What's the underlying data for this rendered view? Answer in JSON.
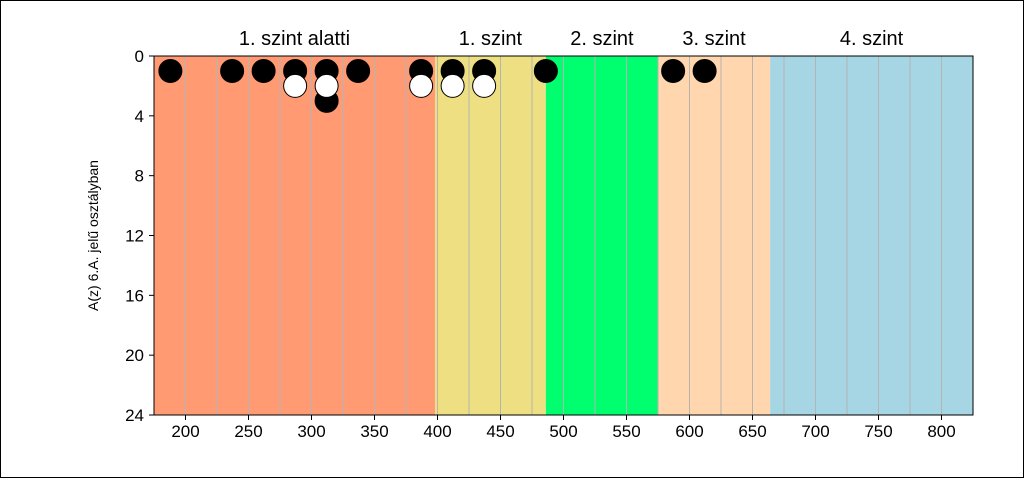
{
  "chart_data": {
    "type": "scatter",
    "ylabel": "A(z) 6.A. jelű osztályban",
    "xlim": [
      175,
      825
    ],
    "ylim": [
      0,
      24
    ],
    "y_inverted": true,
    "x_ticks": [
      200,
      250,
      300,
      350,
      400,
      450,
      500,
      550,
      600,
      650,
      700,
      750,
      800
    ],
    "y_ticks": [
      0,
      4,
      8,
      12,
      16,
      20,
      24
    ],
    "bands": [
      {
        "label": "1. szint alatti",
        "from": 175,
        "to": 398,
        "color": "#FF9A73"
      },
      {
        "label": "1. szint",
        "from": 398,
        "to": 486,
        "color": "#EEE082"
      },
      {
        "label": "2. szint",
        "from": 486,
        "to": 575,
        "color": "#00FF6E"
      },
      {
        "label": "3. szint",
        "from": 575,
        "to": 664,
        "color": "#FFD6AE"
      },
      {
        "label": "4. szint",
        "from": 664,
        "to": 825,
        "color": "#A6D5E3"
      }
    ],
    "series": [
      {
        "fill": "#000000",
        "points": [
          {
            "x": 188,
            "y": 1
          },
          {
            "x": 237,
            "y": 1
          },
          {
            "x": 262,
            "y": 1
          },
          {
            "x": 287,
            "y": 1
          },
          {
            "x": 312,
            "y": 1
          },
          {
            "x": 337,
            "y": 1
          },
          {
            "x": 387,
            "y": 1
          },
          {
            "x": 412,
            "y": 1
          },
          {
            "x": 437,
            "y": 1
          },
          {
            "x": 486,
            "y": 1
          },
          {
            "x": 587,
            "y": 1
          },
          {
            "x": 612,
            "y": 1
          },
          {
            "x": 312,
            "y": 3
          }
        ]
      },
      {
        "fill": "#ffffff",
        "points": [
          {
            "x": 287,
            "y": 2
          },
          {
            "x": 312,
            "y": 2
          },
          {
            "x": 387,
            "y": 2
          },
          {
            "x": 412,
            "y": 2
          },
          {
            "x": 437,
            "y": 2
          }
        ]
      }
    ],
    "grid": true,
    "grid_color": "#B4B4B4"
  }
}
